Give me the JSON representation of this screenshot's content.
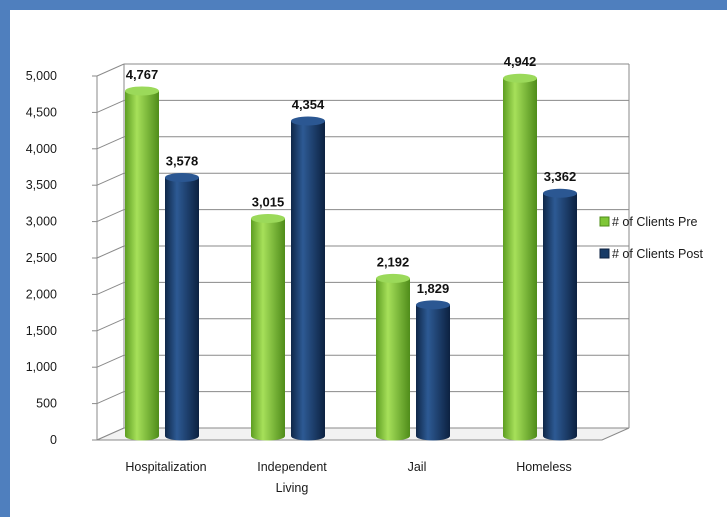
{
  "chart_data": {
    "type": "bar",
    "categories": [
      "Hospitalization",
      "Independent Living",
      "Jail",
      "Homeless"
    ],
    "category_lines": [
      [
        "Hospitalization"
      ],
      [
        "Independent",
        "Living"
      ],
      [
        "Jail"
      ],
      [
        "Homeless"
      ]
    ],
    "series": [
      {
        "name": "# of Clients Pre",
        "values": [
          4767,
          3015,
          2192,
          4942
        ],
        "labels": [
          "4,767",
          "3,015",
          "2,192",
          "4,942"
        ],
        "color": "#7ec636"
      },
      {
        "name": "# of Clients Post",
        "values": [
          3578,
          4354,
          1829,
          3362
        ],
        "labels": [
          "3,578",
          "4,354",
          "1,829",
          "3,362"
        ],
        "color": "#173a66"
      }
    ],
    "ylim": [
      0,
      5000
    ],
    "yticks": [
      "0",
      "500",
      "1,000",
      "1,500",
      "2,000",
      "2,500",
      "3,000",
      "3,500",
      "4,000",
      "4,500",
      "5,000"
    ],
    "grid": true,
    "legend_position": "right",
    "style": "3d-cylinder"
  }
}
